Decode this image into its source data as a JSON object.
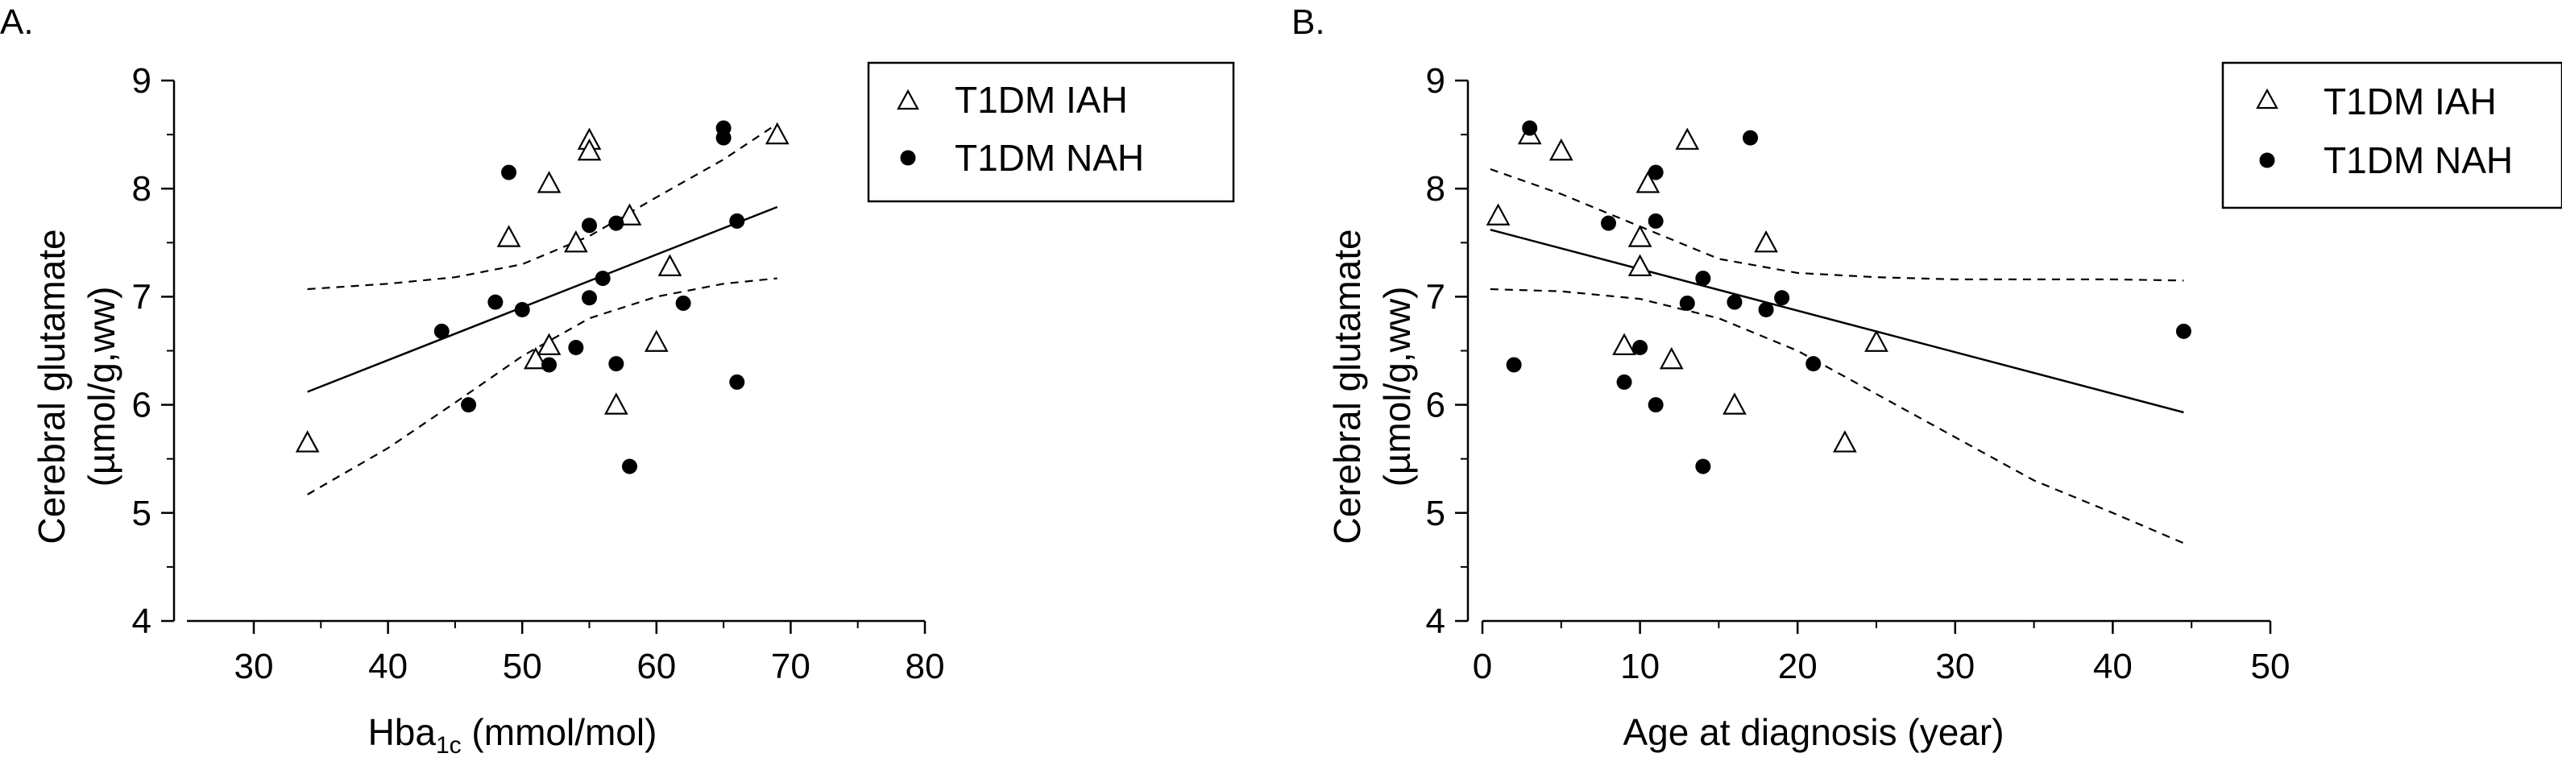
{
  "chart_data": [
    {
      "type": "scatter",
      "panel_label": "A.",
      "ylabel_line1": "Cerebral glutamate",
      "ylabel_line2": "(µmol/g,ww)",
      "xlabel_main": "Hba",
      "xlabel_sub": "1c",
      "xlabel_rest": " (mmol/mol)",
      "xlim": [
        25,
        80
      ],
      "ylim": [
        4,
        9
      ],
      "xticks": [
        30,
        40,
        50,
        60,
        70,
        80
      ],
      "yticks": [
        4,
        5,
        6,
        7,
        8,
        9
      ],
      "legend_position": "top-right",
      "series": [
        {
          "name": "T1DM IAH",
          "marker": "open-triangle",
          "points": [
            [
              34,
              5.65
            ],
            [
              49,
              7.55
            ],
            [
              51,
              6.42
            ],
            [
              52,
              6.55
            ],
            [
              52,
              8.05
            ],
            [
              54,
              7.5
            ],
            [
              55,
              8.45
            ],
            [
              55,
              8.35
            ],
            [
              57,
              6.0
            ],
            [
              58,
              7.75
            ],
            [
              60,
              6.58
            ],
            [
              61,
              7.28
            ],
            [
              69,
              8.5
            ]
          ]
        },
        {
          "name": "T1DM NAH",
          "marker": "filled-circle",
          "points": [
            [
              44,
              6.68
            ],
            [
              46,
              6.0
            ],
            [
              48,
              6.95
            ],
            [
              49,
              8.15
            ],
            [
              50,
              6.88
            ],
            [
              52,
              6.37
            ],
            [
              54,
              6.53
            ],
            [
              55,
              6.99
            ],
            [
              55,
              7.66
            ],
            [
              56,
              7.17
            ],
            [
              57,
              6.38
            ],
            [
              57,
              7.68
            ],
            [
              58,
              5.43
            ],
            [
              62,
              6.94
            ],
            [
              65,
              8.56
            ],
            [
              65,
              8.47
            ],
            [
              66,
              7.7
            ],
            [
              66,
              6.21
            ]
          ]
        }
      ],
      "regression": {
        "x": [
          34,
          69
        ],
        "y": [
          6.12,
          7.83
        ]
      },
      "ci_upper": {
        "x": [
          34,
          40,
          45,
          50,
          55,
          60,
          65,
          69
        ],
        "y": [
          7.07,
          7.12,
          7.18,
          7.3,
          7.56,
          7.92,
          8.27,
          8.6
        ]
      },
      "ci_lower": {
        "x": [
          34,
          40,
          45,
          50,
          55,
          60,
          65,
          69
        ],
        "y": [
          5.17,
          5.6,
          6.02,
          6.45,
          6.8,
          7.0,
          7.12,
          7.17
        ]
      }
    },
    {
      "type": "scatter",
      "panel_label": "B.",
      "ylabel_line1": "Cerebral glutamate",
      "ylabel_line2": "(µmol/g,ww)",
      "xlabel_main": "Age at diagnosis (year)",
      "xlabel_sub": "",
      "xlabel_rest": "",
      "xlim": [
        0,
        50
      ],
      "ylim": [
        4,
        9
      ],
      "xticks": [
        0,
        10,
        20,
        30,
        40,
        50
      ],
      "yticks": [
        4,
        5,
        6,
        7,
        8,
        9
      ],
      "legend_position": "top-right",
      "series": [
        {
          "name": "T1DM IAH",
          "marker": "open-triangle",
          "points": [
            [
              1,
              7.75
            ],
            [
              3,
              8.5
            ],
            [
              5,
              8.35
            ],
            [
              9,
              6.55
            ],
            [
              10,
              7.55
            ],
            [
              10,
              7.28
            ],
            [
              10.5,
              8.05
            ],
            [
              12,
              6.42
            ],
            [
              13,
              8.45
            ],
            [
              16,
              6.0
            ],
            [
              18,
              7.5
            ],
            [
              23,
              5.65
            ],
            [
              25,
              6.58
            ]
          ]
        },
        {
          "name": "T1DM NAH",
          "marker": "filled-circle",
          "points": [
            [
              2,
              6.37
            ],
            [
              3,
              8.56
            ],
            [
              8,
              7.68
            ],
            [
              9,
              6.21
            ],
            [
              10,
              6.53
            ],
            [
              11,
              6.0
            ],
            [
              11,
              8.15
            ],
            [
              11,
              7.7
            ],
            [
              13,
              6.94
            ],
            [
              14,
              7.17
            ],
            [
              14,
              5.43
            ],
            [
              16,
              6.95
            ],
            [
              17,
              8.47
            ],
            [
              18,
              6.88
            ],
            [
              19,
              6.99
            ],
            [
              21,
              6.38
            ],
            [
              44.5,
              6.68
            ]
          ]
        }
      ],
      "regression": {
        "x": [
          0.5,
          44.5
        ],
        "y": [
          7.62,
          5.93
        ]
      },
      "ci_upper": {
        "x": [
          0.5,
          5,
          10,
          15,
          20,
          25,
          30,
          35,
          40,
          44.5
        ],
        "y": [
          8.18,
          7.95,
          7.65,
          7.35,
          7.22,
          7.18,
          7.16,
          7.16,
          7.16,
          7.15
        ]
      },
      "ci_lower": {
        "x": [
          0.5,
          5,
          10,
          15,
          20,
          25,
          30,
          35,
          40,
          44.5
        ],
        "y": [
          7.07,
          7.05,
          6.98,
          6.8,
          6.5,
          6.1,
          5.7,
          5.3,
          5.0,
          4.72
        ]
      }
    }
  ]
}
